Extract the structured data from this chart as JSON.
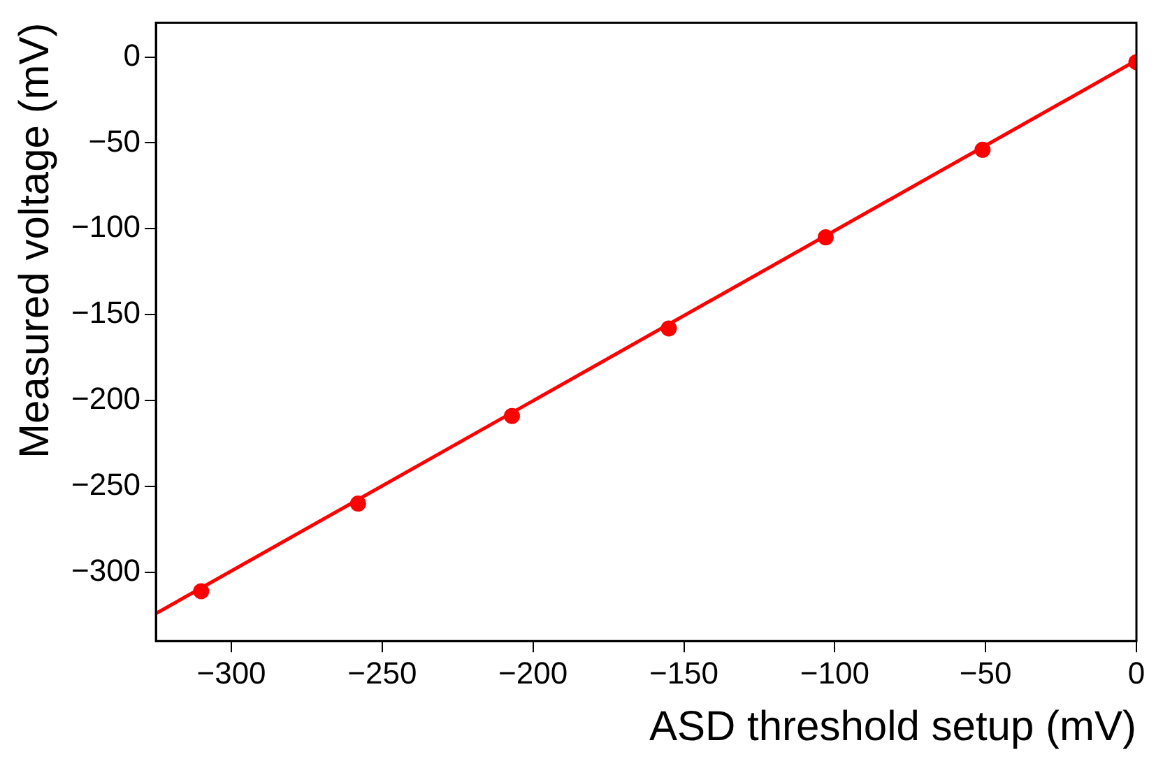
{
  "chart_data": {
    "type": "scatter",
    "xlabel": "ASD threshold setup (mV)",
    "ylabel": "Measured voltage (mV)",
    "xlim": [
      -325,
      0
    ],
    "ylim": [
      -340,
      20
    ],
    "xticks": [
      -300,
      -250,
      -200,
      -150,
      -100,
      -50,
      0
    ],
    "yticks": [
      -300,
      -250,
      -200,
      -150,
      -100,
      -50,
      0
    ],
    "grid": false,
    "legend": false,
    "marker": "circle",
    "series": [
      {
        "type": "scatter",
        "color": "#ff0000",
        "x": [
          -310,
          -258,
          -207,
          -155,
          -103,
          -51,
          0
        ],
        "values": [
          -311,
          -260,
          -209,
          -158,
          -105,
          -54,
          -3
        ]
      },
      {
        "type": "line",
        "color": "#ff0000",
        "marker": "none",
        "line_style": "solid",
        "x": [
          -325,
          0
        ],
        "values": [
          -324,
          -2
        ]
      }
    ]
  }
}
